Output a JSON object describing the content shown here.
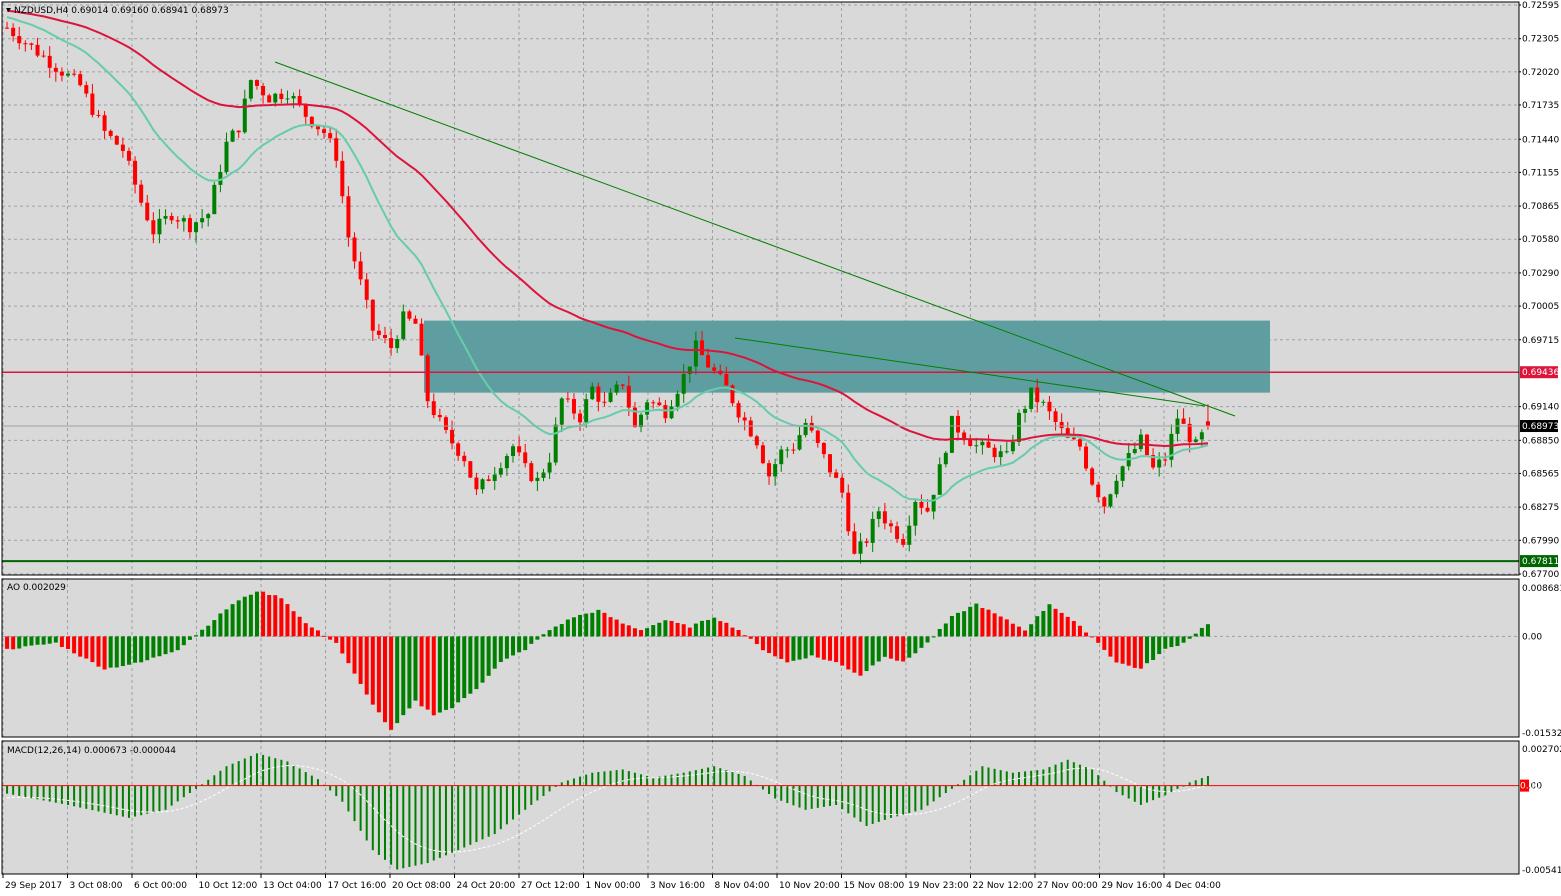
{
  "header": {
    "main": "NZDUSD,H4  0.69014 0.69160 0.68941 0.68973",
    "ao": "AO 0.002029",
    "macd": "MACD(12,26,14) 0.000673 -0.000044"
  },
  "colors": {
    "background": "#ffffff",
    "panel": "#d9d9d9",
    "grid": "#9aa1a8",
    "bull": "#008000",
    "bear": "#ff0000",
    "ma_fast": "#66ccaa",
    "ma_slow": "#dc143c",
    "zone": "#5f9ea0",
    "trendline": "#008000",
    "resistance": "#dc143c",
    "support": "#006400"
  },
  "axes": {
    "main_ticks": [
      "0.72595",
      "0.72305",
      "0.72020",
      "0.71735",
      "0.71440",
      "0.71155",
      "0.70865",
      "0.70580",
      "0.70290",
      "0.70005",
      "0.69715",
      "0.69140",
      "0.68850",
      "0.68565",
      "0.68275",
      "0.67990",
      "0.67700"
    ],
    "main_range": [
      0.677,
      0.72595
    ],
    "ao_ticks": [
      "0.008681",
      "0.00",
      "-0.015321"
    ],
    "ao_range": [
      -0.015321,
      0.008681
    ],
    "macd_ticks": [
      "0.002702",
      "0.00",
      "-0.005415"
    ],
    "macd_range": [
      -0.005415,
      0.002702
    ],
    "x_labels": [
      "29 Sep 2017",
      "3 Oct 08:00",
      "6 Oct 00:00",
      "10 Oct 12:00",
      "13 Oct 04:00",
      "17 Oct 16:00",
      "20 Oct 08:00",
      "24 Oct 20:00",
      "27 Oct 12:00",
      "1 Nov 00:00",
      "3 Nov 16:00",
      "8 Nov 04:00",
      "10 Nov 20:00",
      "15 Nov 08:00",
      "19 Nov 23:00",
      "22 Nov 12:00",
      "27 Nov 00:00",
      "29 Nov 16:00",
      "4 Dec 04:00"
    ]
  },
  "levels": {
    "resistance": "0.69436",
    "current": "0.68973",
    "support": "0.67811",
    "macd_tag": "0.00"
  },
  "chart_data": {
    "type": "candlestick",
    "symbol": "NZDUSD",
    "timeframe": "H4",
    "ohlc_last": {
      "open": 0.69014,
      "high": 0.6916,
      "low": 0.68941,
      "close": 0.68973
    },
    "price_path": [
      [
        0,
        0.724
      ],
      [
        6,
        0.7215
      ],
      [
        12,
        0.719
      ],
      [
        16,
        0.715
      ],
      [
        19,
        0.7135
      ],
      [
        22,
        0.709
      ],
      [
        24,
        0.7065
      ],
      [
        27,
        0.708
      ],
      [
        30,
        0.707
      ],
      [
        33,
        0.708
      ],
      [
        36,
        0.714
      ],
      [
        38,
        0.7155
      ],
      [
        40,
        0.7195
      ],
      [
        43,
        0.718
      ],
      [
        46,
        0.7185
      ],
      [
        49,
        0.7165
      ],
      [
        52,
        0.715
      ],
      [
        54,
        0.713
      ],
      [
        56,
        0.706
      ],
      [
        58,
        0.702
      ],
      [
        60,
        0.698
      ],
      [
        63,
        0.6965
      ],
      [
        65,
        0.699
      ],
      [
        67,
        0.6985
      ],
      [
        69,
        0.692
      ],
      [
        72,
        0.689
      ],
      [
        75,
        0.687
      ],
      [
        77,
        0.684
      ],
      [
        80,
        0.686
      ],
      [
        83,
        0.688
      ],
      [
        85,
        0.686
      ],
      [
        87,
        0.685
      ],
      [
        89,
        0.687
      ],
      [
        91,
        0.692
      ],
      [
        94,
        0.6905
      ],
      [
        96,
        0.693
      ],
      [
        98,
        0.6915
      ],
      [
        101,
        0.6935
      ],
      [
        103,
        0.6895
      ],
      [
        105,
        0.692
      ],
      [
        108,
        0.691
      ],
      [
        111,
        0.694
      ],
      [
        113,
        0.6965
      ],
      [
        115,
        0.695
      ],
      [
        118,
        0.693
      ],
      [
        120,
        0.691
      ],
      [
        123,
        0.6885
      ],
      [
        125,
        0.6855
      ],
      [
        127,
        0.6875
      ],
      [
        129,
        0.688
      ],
      [
        131,
        0.69
      ],
      [
        133,
        0.688
      ],
      [
        135,
        0.686
      ],
      [
        137,
        0.684
      ],
      [
        139,
        0.6785
      ],
      [
        141,
        0.68
      ],
      [
        143,
        0.6825
      ],
      [
        145,
        0.681
      ],
      [
        147,
        0.68
      ],
      [
        149,
        0.6835
      ],
      [
        151,
        0.6825
      ],
      [
        153,
        0.686
      ],
      [
        155,
        0.69
      ],
      [
        157,
        0.689
      ],
      [
        159,
        0.688
      ],
      [
        162,
        0.6875
      ],
      [
        164,
        0.687
      ],
      [
        166,
        0.6905
      ],
      [
        168,
        0.6925
      ],
      [
        170,
        0.6915
      ],
      [
        172,
        0.69
      ],
      [
        174,
        0.6885
      ],
      [
        176,
        0.688
      ],
      [
        178,
        0.685
      ],
      [
        180,
        0.683
      ],
      [
        182,
        0.6855
      ],
      [
        184,
        0.687
      ],
      [
        186,
        0.6885
      ],
      [
        188,
        0.686
      ],
      [
        190,
        0.687
      ],
      [
        192,
        0.6905
      ],
      [
        195,
        0.688
      ],
      [
        197,
        0.6897
      ]
    ],
    "overlays": {
      "resistance_level": 0.69436,
      "support_level": 0.67811,
      "current_price": 0.68973,
      "supply_zone": [
        0.6926,
        0.6988
      ]
    },
    "ao_profile": [
      [
        0,
        -0.002
      ],
      [
        8,
        -0.001
      ],
      [
        16,
        -0.005
      ],
      [
        22,
        -0.004
      ],
      [
        28,
        -0.002
      ],
      [
        32,
        0.001
      ],
      [
        37,
        0.005
      ],
      [
        41,
        0.007
      ],
      [
        45,
        0.006
      ],
      [
        49,
        0.002
      ],
      [
        54,
        -0.001
      ],
      [
        59,
        -0.009
      ],
      [
        63,
        -0.0145
      ],
      [
        67,
        -0.01
      ],
      [
        70,
        -0.012
      ],
      [
        73,
        -0.011
      ],
      [
        77,
        -0.008
      ],
      [
        81,
        -0.004
      ],
      [
        85,
        -0.002
      ],
      [
        89,
        0.001
      ],
      [
        93,
        0.003
      ],
      [
        97,
        0.004
      ],
      [
        101,
        0.002
      ],
      [
        104,
        0.001
      ],
      [
        108,
        0.0025
      ],
      [
        112,
        0.0015
      ],
      [
        116,
        0.003
      ],
      [
        120,
        0.001
      ],
      [
        124,
        -0.002
      ],
      [
        128,
        -0.004
      ],
      [
        132,
        -0.003
      ],
      [
        136,
        -0.004
      ],
      [
        140,
        -0.006
      ],
      [
        144,
        -0.003
      ],
      [
        147,
        -0.004
      ],
      [
        151,
        -0.001
      ],
      [
        155,
        0.003
      ],
      [
        159,
        0.005
      ],
      [
        163,
        0.003
      ],
      [
        167,
        0.001
      ],
      [
        171,
        0.005
      ],
      [
        174,
        0.003
      ],
      [
        178,
        0.0
      ],
      [
        182,
        -0.004
      ],
      [
        186,
        -0.005
      ],
      [
        190,
        -0.002
      ],
      [
        193,
        -0.001
      ],
      [
        197,
        0.002
      ]
    ],
    "macd_profile": [
      [
        0,
        -0.0005
      ],
      [
        10,
        -0.0012
      ],
      [
        20,
        -0.002
      ],
      [
        26,
        -0.0015
      ],
      [
        31,
        -0.0002
      ],
      [
        36,
        0.0012
      ],
      [
        41,
        0.002
      ],
      [
        46,
        0.0015
      ],
      [
        51,
        0.0004
      ],
      [
        55,
        -0.001
      ],
      [
        60,
        -0.004
      ],
      [
        64,
        -0.0052
      ],
      [
        69,
        -0.0048
      ],
      [
        74,
        -0.004
      ],
      [
        80,
        -0.003
      ],
      [
        86,
        -0.0012
      ],
      [
        91,
        0.0002
      ],
      [
        96,
        0.0008
      ],
      [
        101,
        0.001
      ],
      [
        106,
        0.0005
      ],
      [
        111,
        0.0008
      ],
      [
        116,
        0.0012
      ],
      [
        121,
        0.0006
      ],
      [
        126,
        -0.0008
      ],
      [
        131,
        -0.0015
      ],
      [
        136,
        -0.0012
      ],
      [
        141,
        -0.0025
      ],
      [
        145,
        -0.002
      ],
      [
        150,
        -0.0015
      ],
      [
        155,
        -0.0002
      ],
      [
        160,
        0.0012
      ],
      [
        165,
        0.0008
      ],
      [
        170,
        0.001
      ],
      [
        174,
        0.0016
      ],
      [
        178,
        0.001
      ],
      [
        182,
        -0.0004
      ],
      [
        186,
        -0.0012
      ],
      [
        190,
        -0.0006
      ],
      [
        194,
        0.0002
      ],
      [
        197,
        0.0006
      ]
    ]
  }
}
